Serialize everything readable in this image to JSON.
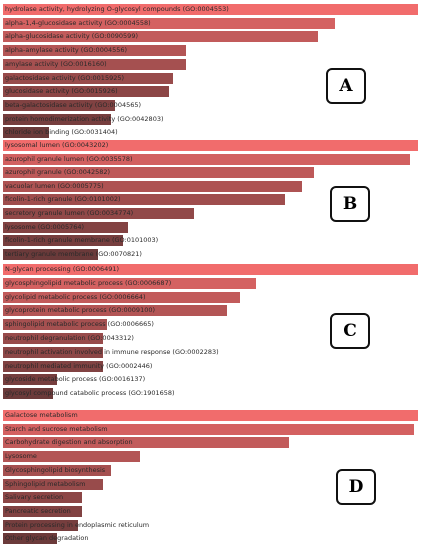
{
  "chart_data": [
    {
      "type": "bar",
      "orientation": "horizontal",
      "panel_label": "A",
      "categories": [
        "hydrolase activity, hydrolyzing O-glycosyl compounds (GO:0004553)",
        "alpha-1,4-glucosidase activity (GO:0004558)",
        "alpha-glucosidase activity (GO:0090599)",
        "alpha-amylase activity (GO:0004556)",
        "amylase activity (GO:0016160)",
        "galactosidase activity (GO:0015925)",
        "glucosidase activity (GO:0015926)",
        "beta-galactosidase activity (GO:0004565)",
        "protein homodimerization activity (GO:0042803)",
        "chloride ion binding (GO:0031404)"
      ],
      "values": [
        100,
        80,
        76,
        44,
        44,
        41,
        40,
        27,
        26,
        11
      ]
    },
    {
      "type": "bar",
      "orientation": "horizontal",
      "panel_label": "B",
      "categories": [
        "lysosomal lumen (GO:0043202)",
        "azurophil granule lumen (GO:0035578)",
        "azurophil granule (GO:0042582)",
        "vacuolar lumen (GO:0005775)",
        "ficolin-1-rich granule (GO:0101002)",
        "secretory granule lumen (GO:0034774)",
        "lysosome (GO:0005764)",
        "ficolin-1-rich granule membrane (GO:0101003)",
        "tertiary granule membrane (GO:0070821)"
      ],
      "values": [
        100,
        98,
        75,
        72,
        68,
        46,
        30,
        29,
        23
      ]
    },
    {
      "type": "bar",
      "orientation": "horizontal",
      "panel_label": "C",
      "categories": [
        "N-glycan processing (GO:0006491)",
        "glycosphingolipid metabolic process (GO:0006687)",
        "glycolipid metabolic process (GO:0006664)",
        "glycoprotein metabolic process (GO:0009100)",
        "sphingolipid metabolic process (GO:0006665)",
        "neutrophil degranulation (GO:0043312)",
        "neutrophil activation involved in immune response (GO:0002283)",
        "neutrophil mediated immunity (GO:0002446)",
        "glycoside metabolic process (GO:0016137)",
        "glycosyl compound catabolic process (GO:1901658)"
      ],
      "values": [
        100,
        61,
        57,
        54,
        25,
        24,
        24,
        24,
        13,
        12
      ]
    },
    {
      "type": "bar",
      "orientation": "horizontal",
      "panel_label": "D",
      "categories": [
        "Galactose metabolism",
        "Starch and sucrose metabolism",
        "Carbohydrate digestion and absorption",
        "Lysosome",
        "Glycosphingolipid biosynthesis",
        "Sphingolipid metabolism",
        "Salivary secretion",
        "Pancreatic secretion",
        "Protein processing in endoplasmic reticulum",
        "Other glycan degradation"
      ],
      "values": [
        100,
        99,
        69,
        33,
        26,
        24,
        19,
        19,
        18,
        13
      ]
    }
  ],
  "colors": {
    "bar_top": "#f16c6c",
    "bar_bottom": "#6b3a3a",
    "box_border": "#111111"
  }
}
